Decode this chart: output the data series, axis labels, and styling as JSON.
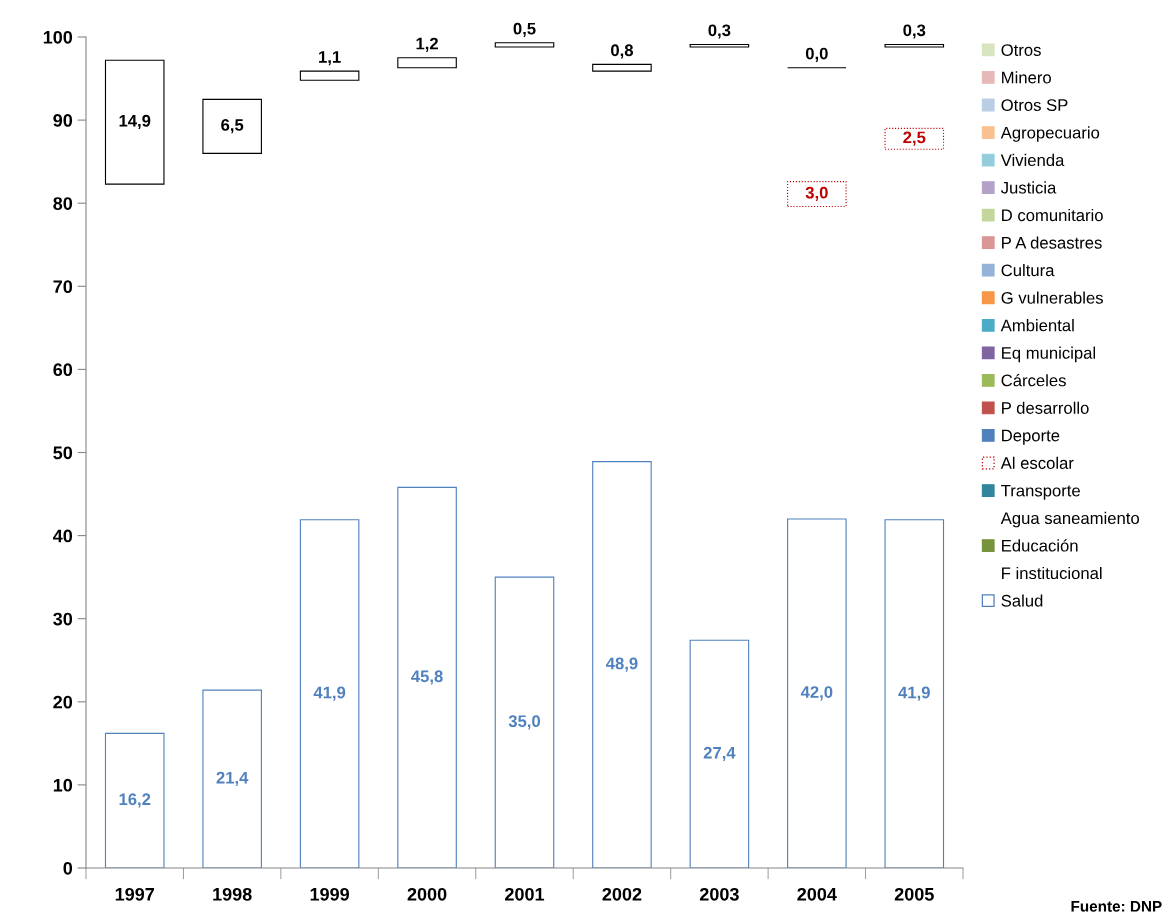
{
  "chart_data": {
    "type": "bar",
    "categories": [
      "1997",
      "1998",
      "1999",
      "2000",
      "2001",
      "2002",
      "2003",
      "2004",
      "2005"
    ],
    "ylim": [
      0,
      100
    ],
    "yticks": [
      0,
      10,
      20,
      30,
      40,
      50,
      60,
      70,
      80,
      90,
      100
    ],
    "legend": "right",
    "annotations": [
      "Fuente: DNP"
    ],
    "series": [
      {
        "name": "Otros",
        "color": "#d7e4bd",
        "values": [
          null,
          null,
          null,
          null,
          null,
          null,
          null,
          null,
          null
        ]
      },
      {
        "name": "Minero",
        "color": "#e6b9b8",
        "values": [
          null,
          null,
          null,
          null,
          null,
          null,
          null,
          null,
          null
        ]
      },
      {
        "name": "Otros SP",
        "color": "#b9cde5",
        "values": [
          null,
          null,
          null,
          null,
          null,
          null,
          null,
          null,
          null
        ]
      },
      {
        "name": "Agropecuario",
        "color": "#fac090",
        "values": [
          null,
          null,
          null,
          null,
          null,
          null,
          null,
          null,
          null
        ]
      },
      {
        "name": "Vivienda",
        "color": "#93cddd",
        "values": [
          null,
          null,
          null,
          null,
          null,
          null,
          null,
          null,
          null
        ]
      },
      {
        "name": "Justicia",
        "color": "#b3a2c7",
        "values": [
          null,
          null,
          null,
          null,
          null,
          null,
          null,
          null,
          null
        ]
      },
      {
        "name": "D comunitario",
        "color": "#c3d69b",
        "values": [
          null,
          null,
          null,
          null,
          null,
          null,
          null,
          null,
          null
        ]
      },
      {
        "name": "P A desastres",
        "color": "#d99694",
        "values": [
          null,
          null,
          null,
          null,
          null,
          null,
          null,
          null,
          null
        ]
      },
      {
        "name": "Cultura",
        "color": "#95b3d7",
        "values": [
          null,
          null,
          null,
          null,
          null,
          null,
          null,
          null,
          null
        ]
      },
      {
        "name": "G vulnerables",
        "color": "#f79646",
        "values": [
          null,
          null,
          null,
          null,
          null,
          null,
          null,
          null,
          null
        ]
      },
      {
        "name": "Ambiental",
        "color": "#4bacc6",
        "values": [
          null,
          null,
          null,
          null,
          null,
          null,
          null,
          null,
          null
        ]
      },
      {
        "name": "Eq municipal",
        "color": "#8064a2",
        "values": [
          null,
          null,
          null,
          null,
          null,
          null,
          null,
          null,
          null
        ]
      },
      {
        "name": "Cárceles",
        "color": "#9bbb59",
        "values": [
          null,
          null,
          null,
          null,
          null,
          null,
          null,
          null,
          null
        ]
      },
      {
        "name": "P desarrollo",
        "color": "#c0504d",
        "values": [
          null,
          null,
          null,
          null,
          null,
          null,
          null,
          null,
          null
        ]
      },
      {
        "name": "Deporte",
        "color": "#4f81bd",
        "values": [
          null,
          null,
          null,
          null,
          null,
          null,
          null,
          null,
          null
        ]
      },
      {
        "name": "Al escolar",
        "color": "#c00000",
        "line_style": "dotted",
        "values": [
          null,
          null,
          null,
          null,
          null,
          null,
          null,
          3.0,
          2.5
        ],
        "base": [
          null,
          null,
          null,
          null,
          null,
          null,
          null,
          79.6,
          86.5
        ],
        "value_labels": [
          null,
          null,
          null,
          null,
          null,
          null,
          null,
          "3,0",
          "2,5"
        ]
      },
      {
        "name": "Transporte",
        "color": "#31859c",
        "values": [
          null,
          null,
          null,
          null,
          null,
          null,
          null,
          null,
          null
        ]
      },
      {
        "name": "Agua saneamiento",
        "color": null,
        "values": [
          null,
          null,
          null,
          null,
          null,
          null,
          null,
          null,
          null
        ]
      },
      {
        "name": "Educación",
        "color": "#77933c",
        "values": [
          null,
          null,
          null,
          null,
          null,
          null,
          null,
          null,
          null
        ]
      },
      {
        "name": "F institucional",
        "color": null,
        "values": [
          null,
          null,
          null,
          null,
          null,
          null,
          null,
          null,
          null
        ]
      },
      {
        "name": "Salud",
        "color": "#4f81bd",
        "values": [
          16.2,
          21.4,
          41.9,
          45.8,
          35.0,
          48.9,
          27.4,
          42.0,
          41.9
        ],
        "base": [
          0,
          0,
          0,
          0,
          0,
          0,
          0,
          0,
          0
        ],
        "value_labels": [
          "16,2",
          "21,4",
          "41,9",
          "45,8",
          "35,0",
          "48,9",
          "27,4",
          "42,0",
          "41,9"
        ]
      },
      {
        "color": "#000000",
        "values": [
          14.9,
          6.5,
          1.1,
          1.2,
          0.5,
          0.8,
          0.3,
          0.0,
          0.3
        ],
        "base": [
          82.3,
          86.0,
          94.8,
          96.3,
          98.8,
          95.9,
          98.8,
          96.3,
          98.8
        ],
        "value_labels": [
          "14,9",
          "6,5",
          "1,1",
          "1,2",
          "0,5",
          "0,8",
          "0,3",
          "0,0",
          "0,3"
        ]
      }
    ]
  }
}
